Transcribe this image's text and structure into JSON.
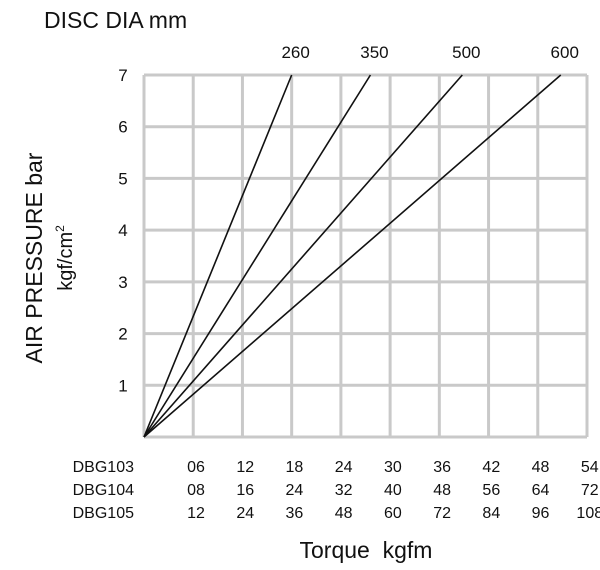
{
  "chart_data": {
    "type": "line",
    "title": "DISC DIA mm",
    "ylabel_main": "AIR PRESSURE bar",
    "ylabel_unit": "kgf/cm",
    "ylabel_unit_sup": "2",
    "xlabel": "Torque  kgfm",
    "ylim": [
      0,
      7
    ],
    "yticks": [
      "1",
      "2",
      "3",
      "4",
      "5",
      "6",
      "7"
    ],
    "x_grid_divisions": 9,
    "grid": true,
    "tick_rows": [
      {
        "name": "DBG103",
        "values": [
          "06",
          "12",
          "18",
          "24",
          "30",
          "36",
          "42",
          "48",
          "54"
        ]
      },
      {
        "name": "DBG104",
        "values": [
          "08",
          "16",
          "24",
          "32",
          "40",
          "48",
          "56",
          "64",
          "72"
        ]
      },
      {
        "name": "DBG105",
        "values": [
          "12",
          "24",
          "36",
          "48",
          "60",
          "72",
          "84",
          "96",
          "108"
        ]
      }
    ],
    "series": [
      {
        "name": "260",
        "x_units": "DBG103",
        "points": [
          [
            0,
            0
          ],
          [
            18,
            7
          ]
        ]
      },
      {
        "name": "350",
        "x_units": "DBG103",
        "points": [
          [
            0,
            0
          ],
          [
            27.6,
            7
          ]
        ]
      },
      {
        "name": "500",
        "x_units": "DBG103",
        "points": [
          [
            0,
            0
          ],
          [
            38.8,
            7
          ]
        ]
      },
      {
        "name": "600",
        "x_units": "DBG103",
        "points": [
          [
            0,
            0
          ],
          [
            50.8,
            7
          ]
        ]
      }
    ]
  }
}
